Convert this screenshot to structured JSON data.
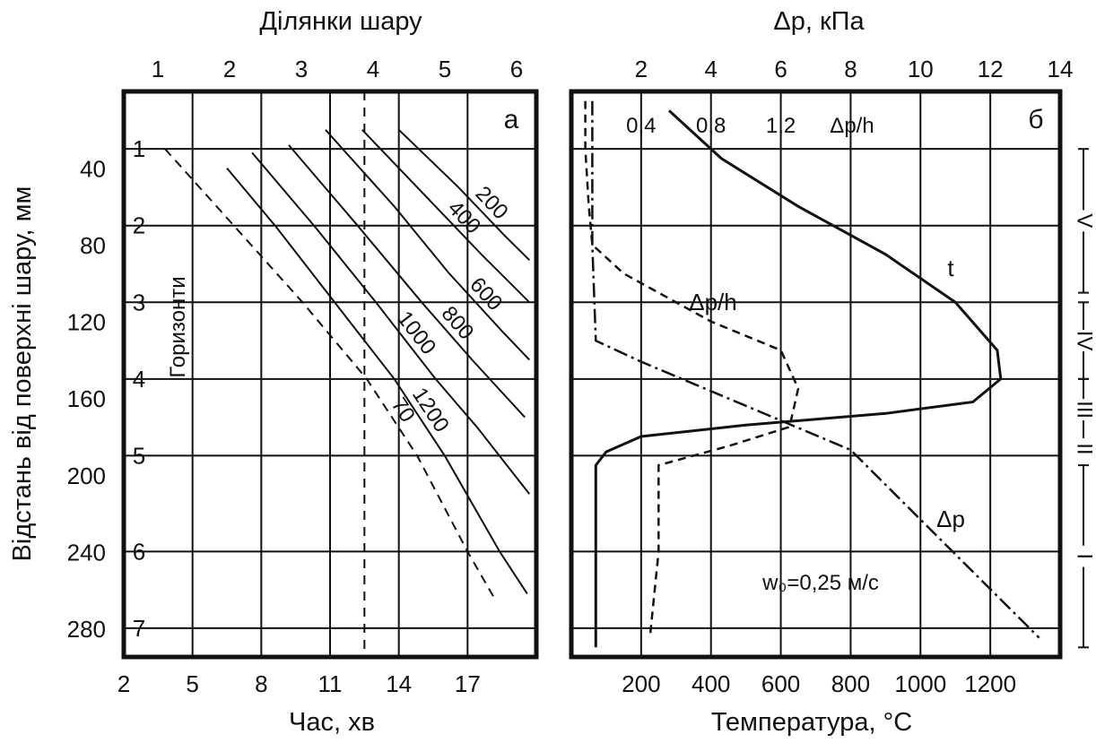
{
  "chart_data": [
    {
      "type": "line",
      "panel": "а",
      "title": "Ділянки шару",
      "xlabel": "Час, хв",
      "ylabel": "Відстань від поверхні шару, мм",
      "bottom_ticks": [
        "2",
        "5",
        "8",
        "11",
        "14",
        "17"
      ],
      "top_ticks": [
        "1",
        "2",
        "3",
        "4",
        "5",
        "6"
      ],
      "y_ticks": [
        "40",
        "80",
        "120",
        "160",
        "200",
        "240",
        "280"
      ],
      "xlim": [
        2,
        20
      ],
      "ylim": [
        0,
        295
      ],
      "horizons_label": "Горизонти",
      "horizons": [
        {
          "label": "1",
          "y": 30
        },
        {
          "label": "2",
          "y": 70
        },
        {
          "label": "3",
          "y": 110
        },
        {
          "label": "4",
          "y": 150
        },
        {
          "label": "5",
          "y": 190
        },
        {
          "label": "6",
          "y": 240
        },
        {
          "label": "7",
          "y": 280
        }
      ],
      "dashed_vertical_x": 12.5,
      "series": [
        {
          "name": "70",
          "style": "dashed",
          "points": [
            [
              3.8,
              30
            ],
            [
              6.8,
              70
            ],
            [
              9.8,
              110
            ],
            [
              12.6,
              150
            ],
            [
              14.8,
              190
            ],
            [
              17.0,
              240
            ],
            [
              18.2,
              265
            ]
          ]
        },
        {
          "name": "1200",
          "points": [
            [
              6.5,
              40
            ],
            [
              8.6,
              70
            ],
            [
              11.2,
              110
            ],
            [
              13.8,
              150
            ],
            [
              16.0,
              190
            ],
            [
              18.4,
              240
            ],
            [
              19.6,
              262
            ]
          ]
        },
        {
          "name": "1000",
          "points": [
            [
              7.6,
              32
            ],
            [
              10.3,
              70
            ],
            [
              13.0,
              110
            ],
            [
              15.6,
              150
            ],
            [
              17.4,
              175
            ],
            [
              19.7,
              210
            ]
          ]
        },
        {
          "name": "800",
          "points": [
            [
              9.2,
              28
            ],
            [
              12.2,
              70
            ],
            [
              15.0,
              110
            ],
            [
              17.2,
              140
            ],
            [
              19.5,
              170
            ]
          ]
        },
        {
          "name": "600",
          "points": [
            [
              10.8,
              20
            ],
            [
              13.8,
              60
            ],
            [
              16.2,
              95
            ],
            [
              18.5,
              125
            ],
            [
              19.7,
              140
            ]
          ]
        },
        {
          "name": "400",
          "points": [
            [
              12.4,
              20
            ],
            [
              15.2,
              55
            ],
            [
              17.6,
              85
            ],
            [
              19.7,
              110
            ]
          ]
        },
        {
          "name": "200",
          "points": [
            [
              14.0,
              20
            ],
            [
              16.6,
              50
            ],
            [
              18.6,
              75
            ],
            [
              19.7,
              88
            ]
          ]
        }
      ]
    },
    {
      "type": "line",
      "panel": "б",
      "title": "Δp, кПа",
      "xlabel": "Температура, °С",
      "top_ticks": [
        "2",
        "4",
        "6",
        "8",
        "10",
        "12",
        "14"
      ],
      "bottom_ticks": [
        "200",
        "400",
        "600",
        "800",
        "1000",
        "1200"
      ],
      "inner_ticks": [
        "0,4",
        "0,8",
        "1,2"
      ],
      "inner_axis_label": "Δp/h",
      "temperature_lim": [
        0,
        1400
      ],
      "dp_lim": [
        0,
        14
      ],
      "dph_lim": [
        0,
        2.8
      ],
      "ylim": [
        0,
        295
      ],
      "zones": [
        "V",
        "IV",
        "III",
        "II",
        "I"
      ],
      "velocity_label": "w₀=0,25 м/с",
      "series": [
        {
          "name": "t",
          "unit": "°С",
          "points": [
            [
              70,
              290
            ],
            [
              70,
              195
            ],
            [
              100,
              188
            ],
            [
              200,
              180
            ],
            [
              500,
              174
            ],
            [
              900,
              168
            ],
            [
              1150,
              162
            ],
            [
              1230,
              150
            ],
            [
              1220,
              135
            ],
            [
              1100,
              110
            ],
            [
              900,
              85
            ],
            [
              650,
              60
            ],
            [
              430,
              35
            ],
            [
              280,
              10
            ]
          ]
        },
        {
          "name": "Δp",
          "unit": "кПа",
          "style": "dash-dot",
          "points": [
            [
              0.6,
              5
            ],
            [
              0.6,
              80
            ],
            [
              0.7,
              130
            ],
            [
              2,
              141
            ],
            [
              8,
              187
            ],
            [
              13.4,
              285
            ]
          ]
        },
        {
          "name": "Δp/h",
          "unit": "кПа/мм",
          "style": "dashed",
          "points": [
            [
              0.08,
              5
            ],
            [
              0.08,
              30
            ],
            [
              0.1,
              60
            ],
            [
              0.12,
              80
            ],
            [
              0.3,
              95
            ],
            [
              0.8,
              120
            ],
            [
              1.2,
              135
            ],
            [
              1.3,
              155
            ],
            [
              1.25,
              175
            ],
            [
              0.9,
              185
            ],
            [
              0.5,
              195
            ],
            [
              0.5,
              240
            ],
            [
              0.45,
              285
            ]
          ]
        }
      ]
    }
  ]
}
